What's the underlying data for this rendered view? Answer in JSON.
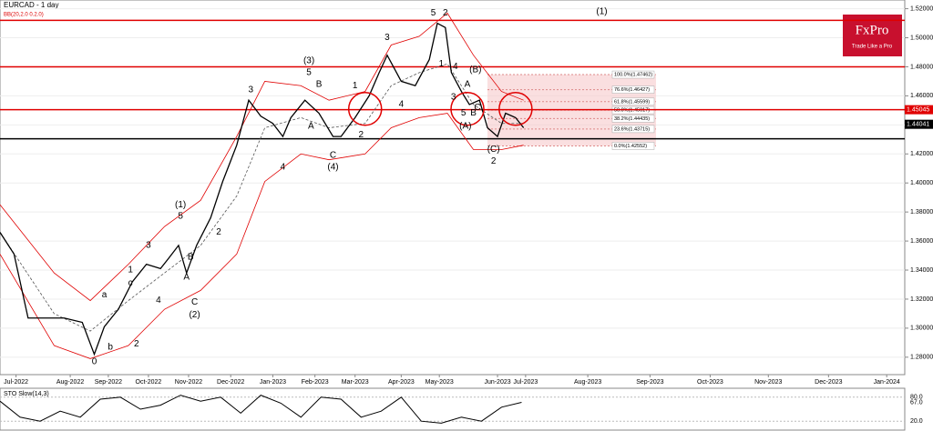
{
  "chart_data": {
    "type": "line",
    "title": "EURCAD - 1 day",
    "indicator": "BB(20,2.0 0.2.0)",
    "brand": "FxPro",
    "tagline": "Trade Like a Pro",
    "xlim": [
      0,
      451
    ],
    "ylim": [
      1.268,
      1.526
    ],
    "xticks": [
      {
        "value": 8,
        "label": "Jul-2022"
      },
      {
        "value": 35,
        "label": "Aug-2022"
      },
      {
        "value": 54,
        "label": "Sep-2022"
      },
      {
        "value": 74,
        "label": "Oct-2022"
      },
      {
        "value": 94,
        "label": "Nov-2022"
      },
      {
        "value": 115,
        "label": "Dec-2022"
      },
      {
        "value": 136,
        "label": "Jan-2023"
      },
      {
        "value": 157,
        "label": "Feb-2023"
      },
      {
        "value": 177,
        "label": "Mar-2023"
      },
      {
        "value": 200,
        "label": "Apr-2023"
      },
      {
        "value": 219,
        "label": "May-2023"
      },
      {
        "value": 248,
        "label": "Jun-2023"
      },
      {
        "value": 262,
        "label": "Jul-2023"
      },
      {
        "value": 293,
        "label": "Aug-2023"
      },
      {
        "value": 324,
        "label": "Sep-2023"
      },
      {
        "value": 354,
        "label": "Oct-2023"
      },
      {
        "value": 383,
        "label": "Nov-2023"
      },
      {
        "value": 413,
        "label": "Dec-2023"
      },
      {
        "value": 442,
        "label": "Jan-2024"
      }
    ],
    "yticks": [
      {
        "value": 1.28,
        "label": "1.28000"
      },
      {
        "value": 1.3,
        "label": "1.30000"
      },
      {
        "value": 1.32,
        "label": "1.32000"
      },
      {
        "value": 1.34,
        "label": "1.34000"
      },
      {
        "value": 1.36,
        "label": "1.36000"
      },
      {
        "value": 1.38,
        "label": "1.38000"
      },
      {
        "value": 1.4,
        "label": "1.40000"
      },
      {
        "value": 1.42,
        "label": "1.42000"
      },
      {
        "value": 1.44,
        "label": "1.44000"
      },
      {
        "value": 1.46,
        "label": "1.46000"
      },
      {
        "value": 1.48,
        "label": "1.48000"
      },
      {
        "value": 1.5,
        "label": "1.50000"
      },
      {
        "value": 1.52,
        "label": "1.52000"
      }
    ],
    "x": [
      0,
      7,
      14,
      23,
      32,
      41,
      47,
      52,
      59,
      66,
      73,
      80,
      84,
      89,
      93,
      98,
      105,
      111,
      118,
      124,
      130,
      136,
      141,
      145,
      152,
      159,
      166,
      170,
      177,
      184,
      189,
      193,
      200,
      207,
      214,
      218,
      222,
      225,
      230,
      234,
      239,
      243,
      248,
      252,
      257,
      261
    ],
    "series": [
      {
        "color": "#000000",
        "values": [
          1.366,
          1.351,
          1.307,
          1.307,
          1.307,
          1.304,
          1.282,
          1.301,
          1.313,
          1.332,
          1.344,
          1.341,
          1.348,
          1.357,
          1.338,
          1.357,
          1.376,
          1.401,
          1.426,
          1.457,
          1.446,
          1.441,
          1.432,
          1.445,
          1.457,
          1.448,
          1.432,
          1.432,
          1.445,
          1.46,
          1.476,
          1.488,
          1.47,
          1.467,
          1.485,
          1.51,
          1.507,
          1.476,
          1.463,
          1.454,
          1.457,
          1.438,
          1.432,
          1.448,
          1.445,
          1.438
        ]
      }
    ],
    "bands_x": [
      0,
      27,
      45,
      64,
      82,
      100,
      118,
      132,
      150,
      164,
      182,
      195,
      209,
      223,
      236,
      250,
      261
    ],
    "bands": [
      {
        "color": "#e00000",
        "values": [
          1.385,
          1.338,
          1.319,
          1.344,
          1.37,
          1.388,
          1.432,
          1.47,
          1.467,
          1.457,
          1.463,
          1.495,
          1.501,
          1.517,
          1.488,
          1.463,
          1.457
        ]
      },
      {
        "color": "#555555",
        "dashed": true,
        "values": [
          1.366,
          1.31,
          1.298,
          1.319,
          1.338,
          1.357,
          1.391,
          1.438,
          1.445,
          1.438,
          1.441,
          1.467,
          1.476,
          1.482,
          1.454,
          1.441,
          1.441
        ]
      },
      {
        "color": "#e00000",
        "values": [
          1.351,
          1.288,
          1.279,
          1.288,
          1.313,
          1.326,
          1.351,
          1.401,
          1.42,
          1.416,
          1.42,
          1.438,
          1.445,
          1.448,
          1.423,
          1.423,
          1.426
        ]
      }
    ],
    "levels": [
      {
        "value": 1.512,
        "color": "#e00000"
      },
      {
        "value": 1.48,
        "color": "#e00000"
      },
      {
        "value": 1.45045,
        "color": "#e00000",
        "label": true
      },
      {
        "value": 1.4304,
        "color": "#000000"
      }
    ],
    "last_price": 1.44041,
    "fib_range_x": [
      243,
      327
    ],
    "fib_levels": [
      {
        "value": 1.47462,
        "label": "100.0%(1.47462)"
      },
      {
        "value": 1.46427,
        "label": "76.6%(1.46427)"
      },
      {
        "value": 1.45599,
        "label": "61.8%(1.45599)"
      },
      {
        "value": 1.45017,
        "label": "50.0%(1.45017)"
      },
      {
        "value": 1.44435,
        "label": "38.2%(1.44435)"
      },
      {
        "value": 1.43715,
        "label": "23.6%(1.43715)"
      },
      {
        "value": 1.42552,
        "label": "0.0%(1.42552)"
      }
    ],
    "highlights": [
      {
        "x": 182,
        "y": 1.451
      },
      {
        "x": 233,
        "y": 1.451
      },
      {
        "x": 257,
        "y": 1.451
      }
    ],
    "annotations": [
      {
        "text": "(1)",
        "x": 300,
        "y": 1.518
      },
      {
        "text": "0",
        "x": 47,
        "y": 1.277
      },
      {
        "text": "a",
        "x": 52,
        "y": 1.323
      },
      {
        "text": "b",
        "x": 55,
        "y": 1.287
      },
      {
        "text": "2",
        "x": 68,
        "y": 1.289
      },
      {
        "text": "1",
        "x": 65,
        "y": 1.34
      },
      {
        "text": "c",
        "x": 65,
        "y": 1.331
      },
      {
        "text": "3",
        "x": 74,
        "y": 1.357
      },
      {
        "text": "4",
        "x": 79,
        "y": 1.319
      },
      {
        "text": "5",
        "x": 90,
        "y": 1.377
      },
      {
        "text": "(1)",
        "x": 90,
        "y": 1.385
      },
      {
        "text": "A",
        "x": 93,
        "y": 1.335
      },
      {
        "text": "B",
        "x": 95,
        "y": 1.349
      },
      {
        "text": "C",
        "x": 97,
        "y": 1.318
      },
      {
        "text": "(2)",
        "x": 97,
        "y": 1.309
      },
      {
        "text": "2",
        "x": 109,
        "y": 1.366
      },
      {
        "text": "3",
        "x": 125,
        "y": 1.464
      },
      {
        "text": "4",
        "x": 141,
        "y": 1.411
      },
      {
        "text": "(3)",
        "x": 154,
        "y": 1.484
      },
      {
        "text": "5",
        "x": 154,
        "y": 1.476
      },
      {
        "text": "B",
        "x": 159,
        "y": 1.468
      },
      {
        "text": "A",
        "x": 155,
        "y": 1.439
      },
      {
        "text": "C",
        "x": 166,
        "y": 1.419
      },
      {
        "text": "(4)",
        "x": 166,
        "y": 1.411
      },
      {
        "text": "1",
        "x": 177,
        "y": 1.467
      },
      {
        "text": "2",
        "x": 180,
        "y": 1.433
      },
      {
        "text": "3",
        "x": 193,
        "y": 1.5
      },
      {
        "text": "4",
        "x": 200,
        "y": 1.454
      },
      {
        "text": "5",
        "x": 216,
        "y": 1.517
      },
      {
        "text": "2",
        "x": 222,
        "y": 1.517
      },
      {
        "text": "1",
        "x": 220,
        "y": 1.482
      },
      {
        "text": "4",
        "x": 227,
        "y": 1.48
      },
      {
        "text": "3",
        "x": 226,
        "y": 1.459
      },
      {
        "text": "(B)",
        "x": 237,
        "y": 1.478
      },
      {
        "text": "A",
        "x": 233,
        "y": 1.468
      },
      {
        "text": "C",
        "x": 238,
        "y": 1.452
      },
      {
        "text": "5",
        "x": 231,
        "y": 1.448
      },
      {
        "text": "B",
        "x": 236,
        "y": 1.448
      },
      {
        "text": "(A)",
        "x": 232,
        "y": 1.439
      },
      {
        "text": "(C)",
        "x": 246,
        "y": 1.423
      },
      {
        "text": "2",
        "x": 246,
        "y": 1.415
      }
    ],
    "stochastic": {
      "title": "STO Slow(14,3)",
      "ylim": [
        0,
        100
      ],
      "yticks": [
        {
          "value": 80,
          "label": "80.0"
        },
        {
          "value": 20,
          "label": "20.0"
        }
      ],
      "last": {
        "value": 67,
        "label": "67.0"
      },
      "x": [
        0,
        10,
        20,
        30,
        40,
        50,
        60,
        70,
        80,
        90,
        100,
        110,
        120,
        130,
        140,
        150,
        160,
        170,
        180,
        190,
        200,
        210,
        220,
        230,
        240,
        250,
        260
      ],
      "values": [
        70,
        30,
        20,
        45,
        30,
        75,
        80,
        50,
        60,
        85,
        70,
        80,
        40,
        85,
        65,
        30,
        80,
        75,
        30,
        45,
        80,
        20,
        15,
        30,
        20,
        55,
        67
      ]
    }
  }
}
